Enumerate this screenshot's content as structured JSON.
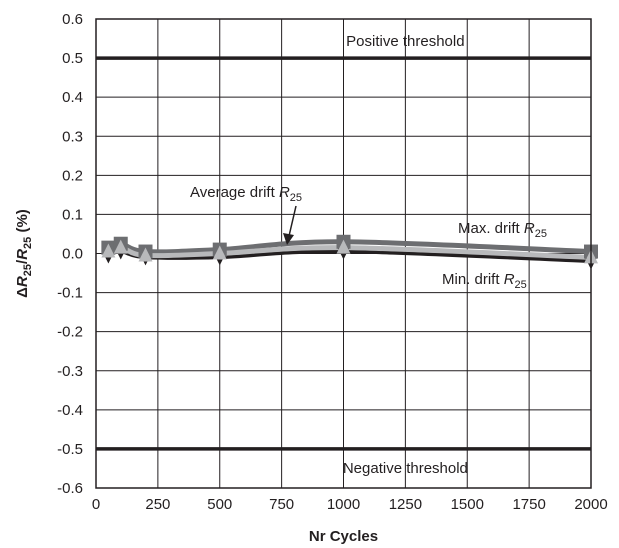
{
  "chart_data": {
    "type": "line",
    "x": [
      50,
      100,
      200,
      500,
      1000,
      2000
    ],
    "series": [
      {
        "name": "Max. drift R25",
        "values": [
          0.015,
          0.025,
          0.005,
          0.01,
          0.03,
          0.005
        ],
        "color": "#6d6e71",
        "marker": "square"
      },
      {
        "name": "Average drift R25",
        "values": [
          0.005,
          0.015,
          -0.005,
          0.0,
          0.015,
          -0.01
        ],
        "color": "#b8b9bb",
        "marker": "triangle"
      },
      {
        "name": "Min. drift R25",
        "values": [
          -0.005,
          0.005,
          -0.01,
          -0.01,
          0.005,
          -0.02
        ],
        "color": "#231f20",
        "marker": "triangle-down"
      }
    ],
    "xlim": [
      0,
      2000
    ],
    "ylim": [
      -0.6,
      0.6
    ],
    "x_ticks": [
      "0",
      "250",
      "500",
      "750",
      "1000",
      "1250",
      "1500",
      "1750",
      "2000"
    ],
    "y_ticks": [
      "0.6",
      "0.5",
      "0.4",
      "0.3",
      "0.2",
      "0.1",
      "0.0",
      "-0.1",
      "-0.2",
      "-0.3",
      "-0.4",
      "-0.5",
      "-0.6"
    ],
    "xlabel": "Nr Cycles",
    "ylabel": "ΔR25/R25 (%)",
    "grid": true,
    "thresholds": [
      {
        "value": 0.5,
        "label": "Positive threshold"
      },
      {
        "value": -0.5,
        "label": "Negative threshold"
      }
    ],
    "annotations": {
      "average": {
        "prefix": "Average drift ",
        "var": "R",
        "sub": "25"
      },
      "max": {
        "prefix": "Max. drift ",
        "var": "R",
        "sub": "25"
      },
      "min": {
        "prefix": "Min. drift ",
        "var": "R",
        "sub": "25"
      }
    },
    "ylabel_parts": {
      "delta": "Δ",
      "r": "R",
      "sub": "25",
      "slash": "/",
      "r2": "R",
      "sub2": "25",
      "unit": " (%)"
    }
  }
}
